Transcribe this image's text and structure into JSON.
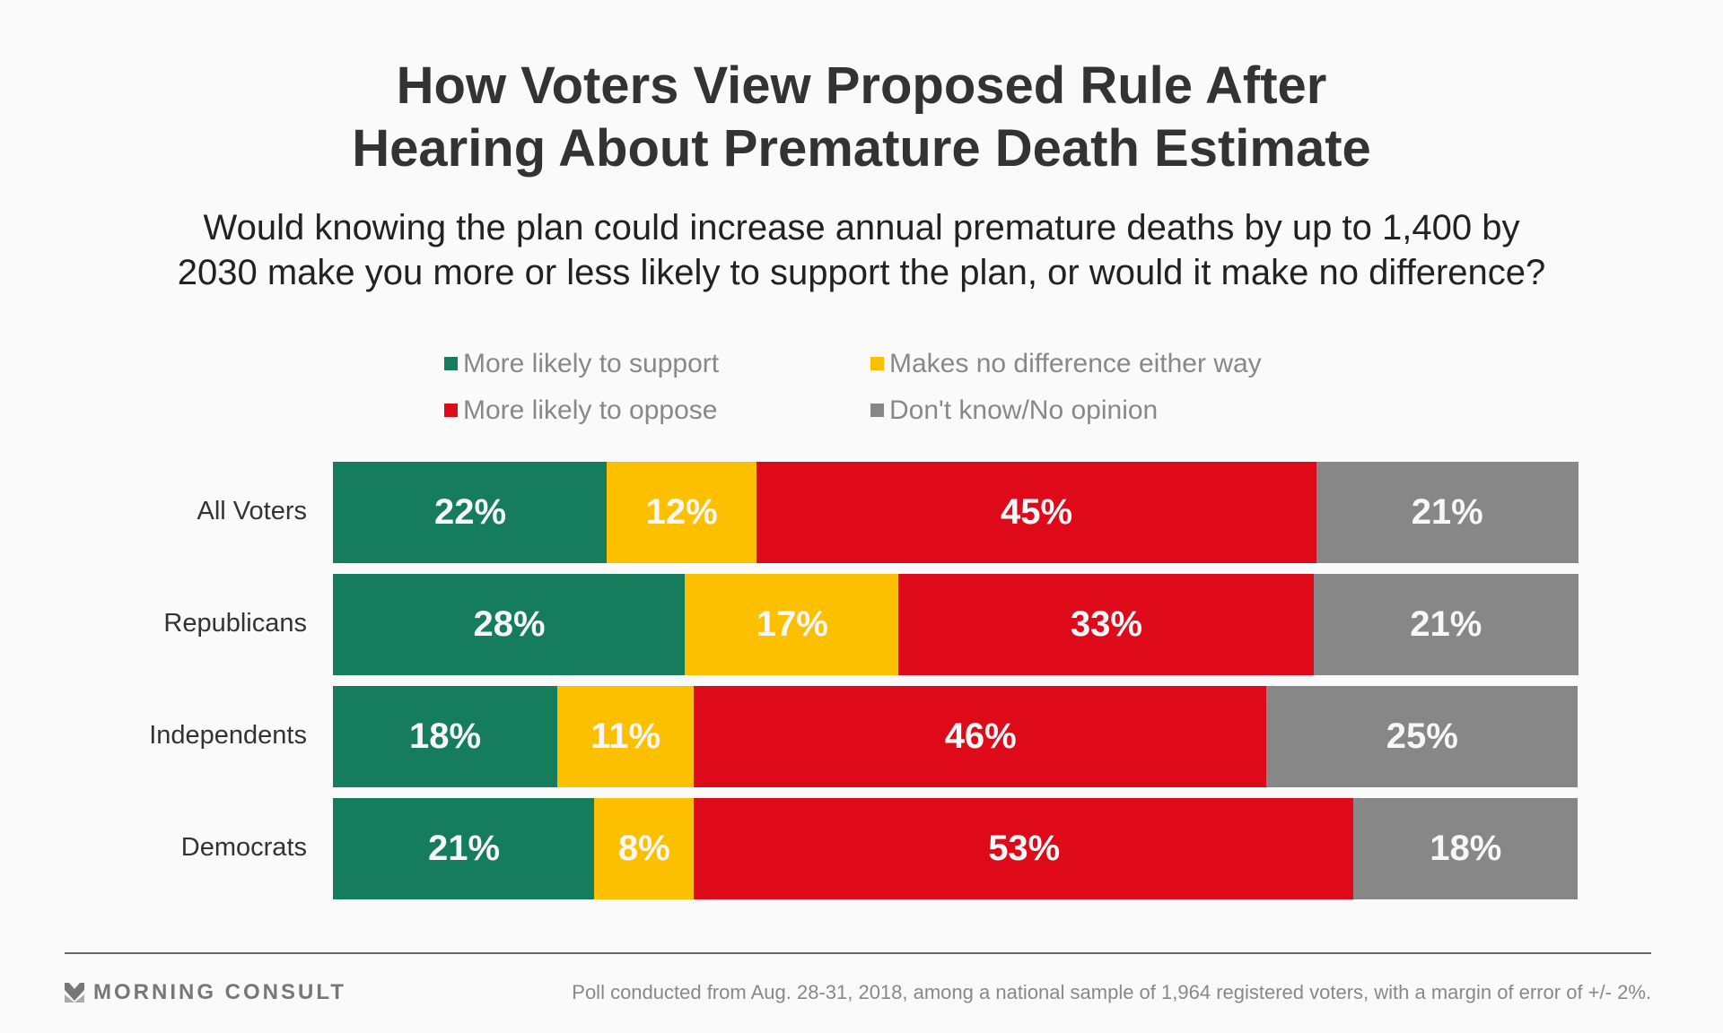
{
  "chart_data": {
    "type": "bar",
    "orientation": "horizontal",
    "stacked": true,
    "title": "How Voters View Proposed Rule After Hearing About Premature Death Estimate",
    "title_lines": [
      "How Voters View Proposed Rule After",
      "Hearing About Premature Death Estimate"
    ],
    "subtitle_lines": [
      "Would knowing the plan could increase annual premature deaths by up to 1,400 by",
      "2030 make you more or less likely to support the plan, or would it make no difference?"
    ],
    "categories": [
      "All Voters",
      "Republicans",
      "Independents",
      "Democrats"
    ],
    "series": [
      {
        "name": "More likely to support",
        "color": "#157c5c",
        "values": [
          22,
          28,
          18,
          21
        ]
      },
      {
        "name": "Makes no difference either way",
        "color": "#fdc000",
        "values": [
          12,
          17,
          11,
          8
        ]
      },
      {
        "name": "More likely to oppose",
        "color": "#de0a1a",
        "values": [
          45,
          33,
          46,
          53
        ]
      },
      {
        "name": "Don't know/No opinion",
        "color": "#878787",
        "values": [
          21,
          21,
          25,
          18
        ]
      }
    ],
    "value_suffix": "%",
    "legend_position": "top",
    "xlabel": "",
    "ylabel": "",
    "grid": false
  },
  "footer": {
    "brand": "MORNING CONSULT",
    "note": "Poll conducted from Aug. 28-31, 2018, among a national sample of 1,964 registered voters, with a margin of error of +/- 2%."
  }
}
